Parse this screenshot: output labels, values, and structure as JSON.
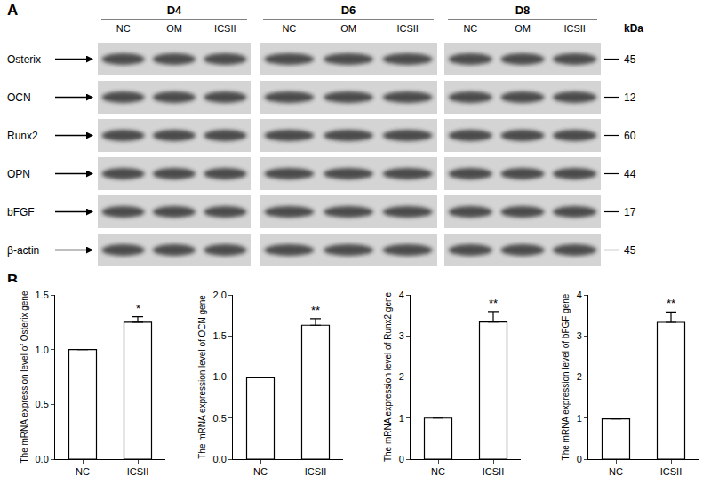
{
  "panel_labels": [
    "A",
    "B"
  ],
  "blot": {
    "unit": "kDa",
    "groups": [
      {
        "name": "D4",
        "lanes": [
          "NC",
          "OM",
          "ICSII"
        ]
      },
      {
        "name": "D6",
        "lanes": [
          "NC",
          "OM",
          "ICSII"
        ]
      },
      {
        "name": "D8",
        "lanes": [
          "NC",
          "OM",
          "ICSII"
        ]
      }
    ],
    "proteins": [
      {
        "name": "Osterix",
        "kda": 45
      },
      {
        "name": "OCN",
        "kda": 12
      },
      {
        "name": "Runx2",
        "kda": 60
      },
      {
        "name": "OPN",
        "kda": 44
      },
      {
        "name": "bFGF",
        "kda": 17
      },
      {
        "name": "β-actin",
        "kda": 45
      }
    ]
  },
  "chart_data": [
    {
      "type": "bar",
      "y_label": "The mRNA expression level of Osterix gene",
      "categories": [
        "NC",
        "ICSII"
      ],
      "values": [
        1.0,
        1.25
      ],
      "errors": [
        null,
        0.05
      ],
      "significance": [
        null,
        "*"
      ],
      "color": "#ffffff",
      "ylim": [
        0,
        1.5
      ],
      "yticks": [
        {
          "value": 0,
          "label": "0.0"
        },
        0.5,
        {
          "value": 1,
          "label": "1.0"
        },
        1.5
      ]
    },
    {
      "type": "bar",
      "y_label": "The mRNA expression level of OCN gene",
      "categories": [
        "NC",
        "ICSII"
      ],
      "values": [
        0.99,
        1.63
      ],
      "errors": [
        null,
        0.08
      ],
      "significance": [
        null,
        "**"
      ],
      "color": "#ffffff",
      "ylim": [
        0,
        2
      ],
      "yticks": [
        {
          "value": 0,
          "label": "0.0"
        },
        0.5,
        {
          "value": 1,
          "label": "1.0"
        },
        1.5,
        {
          "value": 2,
          "label": "2.0"
        }
      ]
    },
    {
      "type": "bar",
      "y_label": "The mRNA expression level of Runx2 gene",
      "categories": [
        "NC",
        "ICSII"
      ],
      "values": [
        1.0,
        3.34
      ],
      "errors": [
        null,
        0.25
      ],
      "significance": [
        null,
        "**"
      ],
      "color": "#ffffff",
      "ylim": [
        0,
        4
      ],
      "yticks": [
        0,
        1,
        2,
        3,
        4
      ]
    },
    {
      "type": "bar",
      "y_label": "The mRNA expression level of bFGF gene",
      "categories": [
        "NC",
        "ICSII"
      ],
      "values": [
        0.98,
        3.33
      ],
      "errors": [
        null,
        0.25
      ],
      "significance": [
        null,
        "**"
      ],
      "color": "#ffffff",
      "ylim": [
        0,
        4
      ],
      "yticks": [
        0,
        1,
        2,
        3,
        4
      ]
    }
  ]
}
